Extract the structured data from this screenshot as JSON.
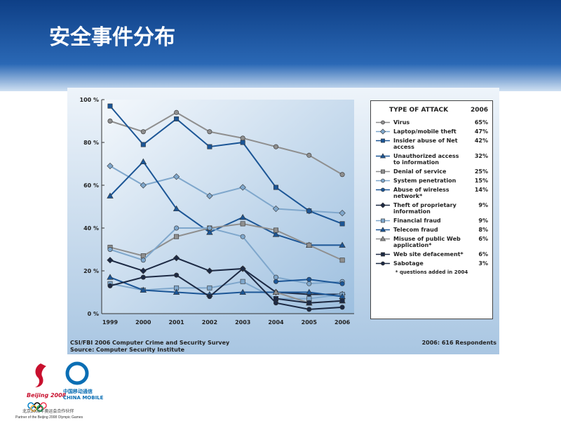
{
  "slide_title": "安全事件分布",
  "chart_data": {
    "type": "line",
    "categories": [
      "1999",
      "2000",
      "2001",
      "2002",
      "2003",
      "2004",
      "2005",
      "2006"
    ],
    "ylim": [
      0,
      100
    ],
    "yticks": [
      {
        "value": 0,
        "label": "0 %"
      },
      {
        "value": 20,
        "label": "20 %"
      },
      {
        "value": 40,
        "label": "40 %"
      },
      {
        "value": 60,
        "label": "60 %"
      },
      {
        "value": 80,
        "label": "80 %"
      },
      {
        "value": 100,
        "label": "100 %"
      }
    ],
    "legend_title": "TYPE OF ATTACK",
    "legend_year": "2006",
    "series": [
      {
        "name": "Virus",
        "legend_value": "65%",
        "color": "#8f8f8f",
        "marker": "circle",
        "values": [
          90,
          85,
          94,
          85,
          82,
          78,
          74,
          65
        ]
      },
      {
        "name": "Laptop/mobile theft",
        "legend_value": "47%",
        "color": "#7fa7cc",
        "marker": "diamond",
        "values": [
          69,
          60,
          64,
          55,
          59,
          49,
          48,
          47
        ]
      },
      {
        "name": "Insider abuse of Net access",
        "legend_value": "42%",
        "color": "#1c5696",
        "marker": "square",
        "values": [
          97,
          79,
          91,
          78,
          80,
          59,
          48,
          42
        ]
      },
      {
        "name": "Unauthorized access to information",
        "legend_value": "32%",
        "color": "#1c5696",
        "marker": "triangle",
        "values": [
          55,
          71,
          49,
          38,
          45,
          37,
          32,
          32
        ]
      },
      {
        "name": "Denial of service",
        "legend_value": "25%",
        "color": "#8f8f8f",
        "marker": "square",
        "values": [
          31,
          27,
          36,
          40,
          42,
          39,
          32,
          25
        ]
      },
      {
        "name": "System penetration",
        "legend_value": "15%",
        "color": "#7fa7cc",
        "marker": "circle",
        "values": [
          30,
          25,
          40,
          40,
          36,
          17,
          14,
          15
        ]
      },
      {
        "name": "Abuse of wireless network*",
        "legend_value": "14%",
        "color": "#1c5696",
        "marker": "circle",
        "values": [
          null,
          null,
          null,
          null,
          null,
          15,
          16,
          14
        ]
      },
      {
        "name": "Theft of proprietary information",
        "legend_value": "9%",
        "color": "#1d2a44",
        "marker": "diamond",
        "values": [
          25,
          20,
          26,
          20,
          21,
          10,
          9,
          9
        ]
      },
      {
        "name": "Financial fraud",
        "legend_value": "9%",
        "color": "#7fa7cc",
        "marker": "square",
        "values": [
          14,
          11,
          12,
          12,
          15,
          7,
          7,
          9
        ]
      },
      {
        "name": "Telecom fraud",
        "legend_value": "8%",
        "color": "#1c5696",
        "marker": "triangle",
        "values": [
          17,
          11,
          10,
          9,
          10,
          10,
          10,
          8
        ]
      },
      {
        "name": "Misuse of public Web application*",
        "legend_value": "6%",
        "color": "#8f8f8f",
        "marker": "triangle",
        "values": [
          null,
          null,
          null,
          null,
          null,
          10,
          5,
          6
        ]
      },
      {
        "name": "Web site defacement*",
        "legend_value": "6%",
        "color": "#1d2a44",
        "marker": "square",
        "values": [
          null,
          null,
          null,
          null,
          null,
          7,
          5,
          6
        ]
      },
      {
        "name": "Sabotage",
        "legend_value": "3%",
        "color": "#1d2a44",
        "marker": "circle",
        "values": [
          13,
          17,
          18,
          8,
          21,
          5,
          2,
          3
        ]
      }
    ],
    "footnote": "* questions added in 2004",
    "source_line1": "CSI/FBI 2006 Computer Crime and Security Survey",
    "source_line2": "Source: Computer Security Institute",
    "respondents": "2006: 616 Respondents"
  },
  "logos": {
    "beijing": "Beijing 2008",
    "cm_cn": "中国移动通信",
    "cm_en": "CHINA MOBILE",
    "partner_cn": "北京2008年奥运会合作伙伴",
    "partner_en": "Partner of the Beijing 2008 Olympic Games"
  }
}
